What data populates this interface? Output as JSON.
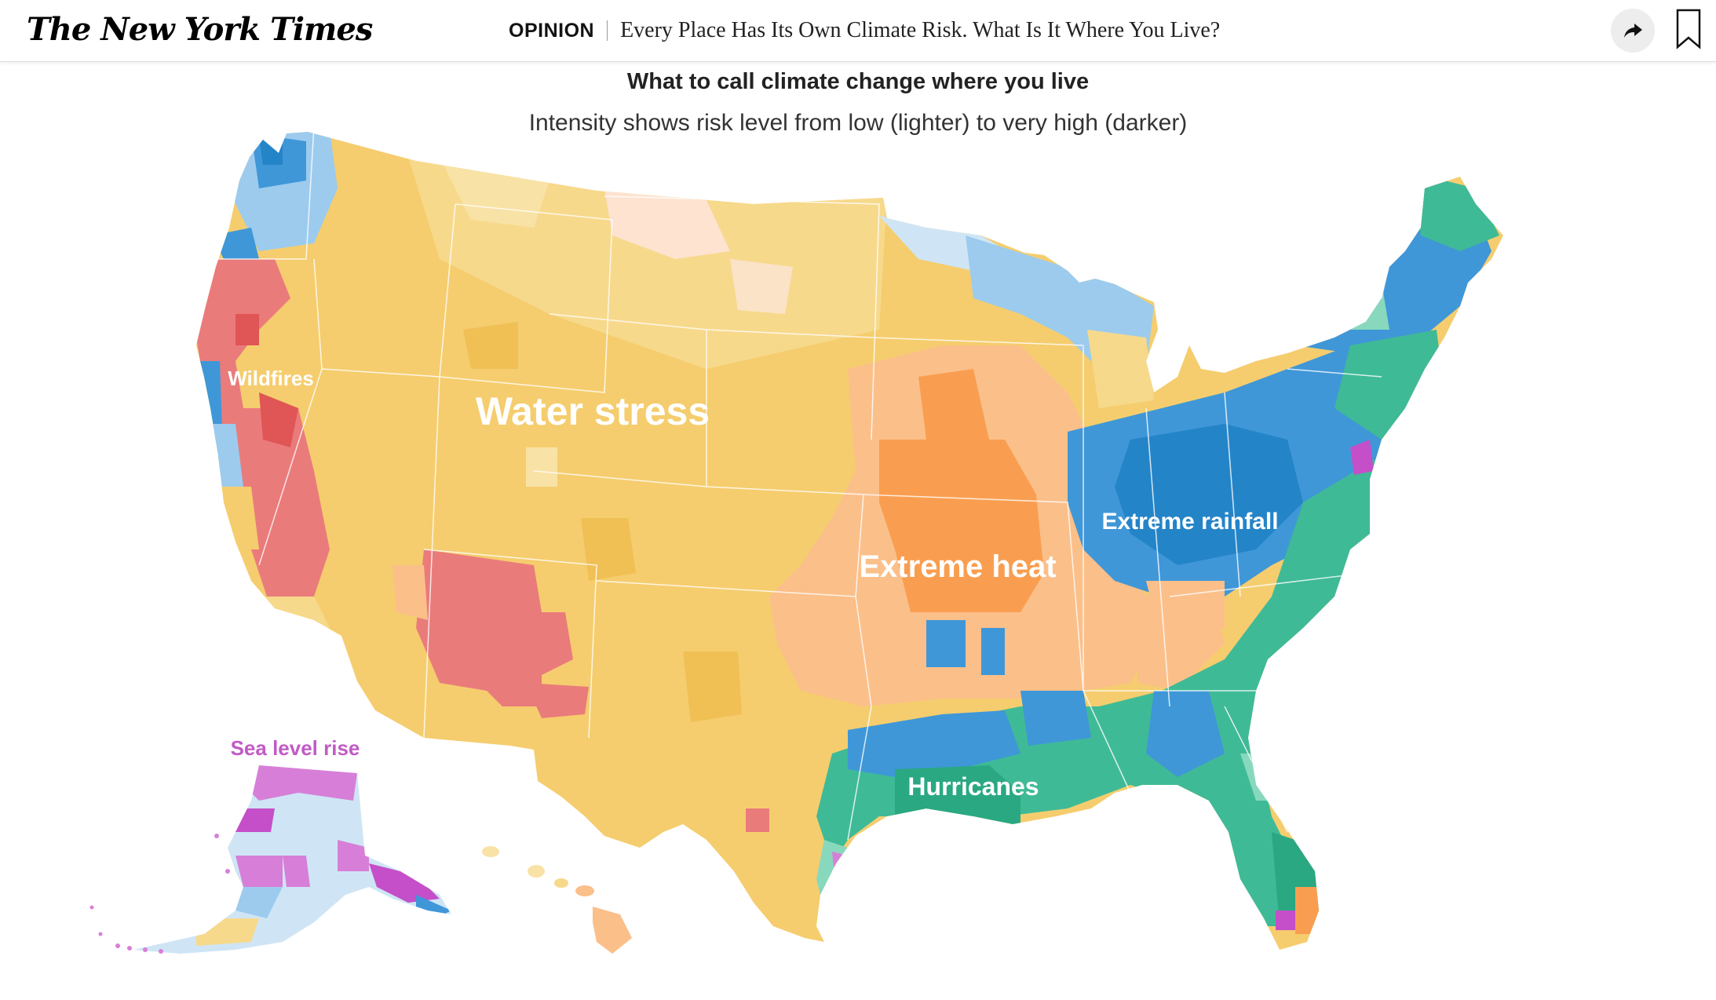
{
  "header": {
    "logo": "The New York Times",
    "section": "OPINION",
    "title": "Every Place Has Its Own Climate Risk. What Is It Where You Live?",
    "share_icon": "share-arrow-icon",
    "bookmark_icon": "bookmark-icon"
  },
  "map": {
    "title": "What to call climate change where you live",
    "subtitle": "Intensity shows risk level from low (lighter) to very high (darker)",
    "labels": {
      "wildfires": "Wildfires",
      "water_stress": "Water stress",
      "extreme_heat": "Extreme heat",
      "extreme_rainfall": "Extreme rainfall",
      "hurricanes": "Hurricanes",
      "sea_level_rise": "Sea level rise"
    },
    "colors": {
      "water_stress": "#f5cd6e",
      "water_stress_light": "#f9e2a6",
      "extreme_heat": "#f99e50",
      "extreme_heat_light": "#fbbf8a",
      "extreme_rainfall": "#3f97d8",
      "extreme_rainfall_dark": "#2484c8",
      "extreme_rainfall_light": "#9ccbee",
      "hurricanes": "#3fba96",
      "hurricanes_light": "#88d8be",
      "wildfires": "#ea7b7b",
      "wildfires_dark": "#e05555",
      "sea_level_rise": "#d77fd8",
      "sea_level_rise_dark": "#c44fc8",
      "sea_level_label": "#c15bc6"
    }
  }
}
